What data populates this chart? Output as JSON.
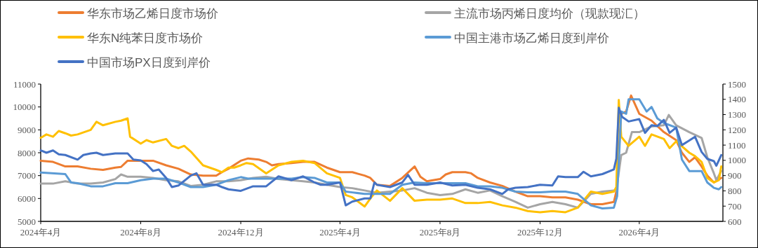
{
  "chart_data": {
    "type": "line",
    "legend": "top",
    "xlim": [
      "2024-04-01",
      "2026-07-12"
    ],
    "xticks": [
      {
        "value": "2024-04-01",
        "label": "2024年4月"
      },
      {
        "value": "2024-08-01",
        "label": "2024年8月"
      },
      {
        "value": "2024-12-01",
        "label": "2024年12月"
      },
      {
        "value": "2025-04-01",
        "label": "2025年4月"
      },
      {
        "value": "2025-08-01",
        "label": "2025年8月"
      },
      {
        "value": "2025-12-01",
        "label": "2025年12月"
      },
      {
        "value": "2026-04-01",
        "label": "2026年4月"
      }
    ],
    "ylim": [
      5000,
      11000
    ],
    "yticks": [
      5000,
      6000,
      7000,
      8000,
      9000,
      10000,
      11000
    ],
    "y2lim": [
      600,
      1500
    ],
    "y2ticks": [
      600,
      700,
      800,
      900,
      1000,
      1100,
      1200,
      1300,
      1400,
      1500
    ],
    "series": [
      {
        "name": "华东市场乙烯日度市场价",
        "color": "#ed7d31",
        "x": [
          "2024-04-01",
          "2024-04-16",
          "2024-05-01",
          "2024-05-16",
          "2024-06-01",
          "2024-06-16",
          "2024-07-01",
          "2024-07-08",
          "2024-07-16",
          "2024-08-01",
          "2024-08-16",
          "2024-09-01",
          "2024-09-16",
          "2024-10-01",
          "2024-10-16",
          "2024-11-01",
          "2024-11-08",
          "2024-11-16",
          "2024-12-01",
          "2024-12-10",
          "2024-12-23",
          "2025-01-01",
          "2025-01-08",
          "2025-01-16",
          "2025-02-01",
          "2025-02-15",
          "2025-03-01",
          "2025-03-16",
          "2025-04-01",
          "2025-04-16",
          "2025-05-01",
          "2025-05-08",
          "2025-05-16",
          "2025-06-01",
          "2025-06-16",
          "2025-07-01",
          "2025-07-08",
          "2025-07-16",
          "2025-08-01",
          "2025-08-08",
          "2025-08-16",
          "2025-09-01",
          "2025-09-08",
          "2025-09-16",
          "2025-10-01",
          "2025-10-16",
          "2025-11-01",
          "2025-11-16",
          "2025-12-01",
          "2025-12-16",
          "2026-01-01",
          "2026-01-16",
          "2026-02-01",
          "2026-02-15",
          "2026-03-01",
          "2026-03-04",
          "2026-03-10",
          "2026-03-16",
          "2026-03-22",
          "2026-04-01",
          "2026-04-16",
          "2026-05-01",
          "2026-05-16",
          "2026-05-23",
          "2026-06-01",
          "2026-06-08",
          "2026-06-16",
          "2026-06-23",
          "2026-07-01",
          "2026-07-10"
        ],
        "values": [
          7650,
          7600,
          7400,
          7400,
          7300,
          7250,
          7350,
          7380,
          7650,
          7650,
          7650,
          7450,
          7300,
          7050,
          7000,
          7000,
          7150,
          7300,
          7650,
          7750,
          7700,
          7600,
          7450,
          7500,
          7550,
          7600,
          7600,
          7350,
          7150,
          7150,
          7000,
          6900,
          6600,
          6550,
          6900,
          7400,
          6950,
          6750,
          6850,
          7050,
          7150,
          7150,
          7100,
          6900,
          6700,
          6550,
          6300,
          6100,
          6100,
          6050,
          6050,
          5950,
          5750,
          5750,
          5850,
          6300,
          9700,
          9800,
          10500,
          9700,
          9400,
          8900,
          8550,
          8000,
          7600,
          7800,
          7400,
          7000,
          6700,
          6900
        ]
      },
      {
        "name": "主流市场丙烯日度均价（现款现汇）",
        "color": "#a5a5a5",
        "x": [
          "2024-04-01",
          "2024-04-16",
          "2024-05-01",
          "2024-05-16",
          "2024-06-01",
          "2024-06-16",
          "2024-07-01",
          "2024-07-08",
          "2024-07-16",
          "2024-08-01",
          "2024-08-16",
          "2024-09-01",
          "2024-09-16",
          "2024-10-01",
          "2024-10-16",
          "2024-11-01",
          "2024-11-16",
          "2024-12-01",
          "2024-12-16",
          "2025-01-01",
          "2025-01-16",
          "2025-02-01",
          "2025-02-15",
          "2025-03-01",
          "2025-03-16",
          "2025-04-01",
          "2025-04-16",
          "2025-05-01",
          "2025-05-16",
          "2025-06-01",
          "2025-06-16",
          "2025-07-01",
          "2025-07-16",
          "2025-08-01",
          "2025-08-16",
          "2025-09-01",
          "2025-09-16",
          "2025-10-01",
          "2025-10-16",
          "2025-11-01",
          "2025-11-16",
          "2025-12-01",
          "2025-12-16",
          "2026-01-01",
          "2026-01-16",
          "2026-02-01",
          "2026-02-15",
          "2026-03-01",
          "2026-03-04",
          "2026-03-10",
          "2026-03-16",
          "2026-03-23",
          "2026-04-01",
          "2026-04-16",
          "2026-05-01",
          "2026-05-07",
          "2026-05-16",
          "2026-06-01",
          "2026-06-16",
          "2026-06-23",
          "2026-07-01",
          "2026-07-04",
          "2026-07-10"
        ],
        "values": [
          6650,
          6650,
          6750,
          6650,
          6650,
          6700,
          6850,
          7050,
          6950,
          6950,
          6900,
          6800,
          6750,
          6550,
          6600,
          6750,
          6750,
          6800,
          6900,
          6950,
          6850,
          6800,
          6750,
          6700,
          6600,
          6500,
          6450,
          6350,
          6250,
          6300,
          6350,
          6450,
          6250,
          6150,
          6200,
          6400,
          6250,
          6350,
          6100,
          5850,
          5600,
          5750,
          5850,
          5750,
          5600,
          6200,
          6300,
          6350,
          6350,
          7900,
          8000,
          8900,
          8900,
          9150,
          9200,
          9650,
          9200,
          8900,
          8650,
          7800,
          7100,
          6800,
          7200
        ]
      },
      {
        "name": "华东N纯苯日度市场价",
        "color": "#ffc000",
        "x": [
          "2024-04-01",
          "2024-04-08",
          "2024-04-16",
          "2024-04-23",
          "2024-05-01",
          "2024-05-08",
          "2024-05-16",
          "2024-06-01",
          "2024-06-08",
          "2024-06-16",
          "2024-07-01",
          "2024-07-08",
          "2024-07-16",
          "2024-07-19",
          "2024-08-01",
          "2024-08-08",
          "2024-08-16",
          "2024-09-01",
          "2024-09-08",
          "2024-09-16",
          "2024-09-23",
          "2024-10-01",
          "2024-10-16",
          "2024-11-01",
          "2024-11-08",
          "2024-11-16",
          "2024-11-23",
          "2024-12-01",
          "2024-12-08",
          "2024-12-16",
          "2025-01-01",
          "2025-01-16",
          "2025-02-01",
          "2025-02-15",
          "2025-03-01",
          "2025-03-16",
          "2025-04-01",
          "2025-04-08",
          "2025-04-16",
          "2025-05-01",
          "2025-05-08",
          "2025-05-16",
          "2025-06-01",
          "2025-06-16",
          "2025-07-01",
          "2025-07-16",
          "2025-08-01",
          "2025-08-16",
          "2025-09-01",
          "2025-09-16",
          "2025-10-01",
          "2025-10-16",
          "2025-11-01",
          "2025-11-16",
          "2025-12-01",
          "2025-12-16",
          "2026-01-01",
          "2026-01-16",
          "2026-02-01",
          "2026-02-15",
          "2026-03-01",
          "2026-03-04",
          "2026-03-07",
          "2026-03-10",
          "2026-03-19",
          "2026-04-01",
          "2026-04-08",
          "2026-04-16",
          "2026-05-01",
          "2026-05-08",
          "2026-05-16",
          "2026-06-01",
          "2026-06-08",
          "2026-06-16",
          "2026-06-23",
          "2026-07-01",
          "2026-07-07",
          "2026-07-10"
        ],
        "values": [
          8650,
          8800,
          8700,
          8950,
          8850,
          8750,
          8800,
          9000,
          9350,
          9200,
          9350,
          9400,
          9500,
          8700,
          8400,
          8550,
          8450,
          8600,
          8300,
          8200,
          8300,
          8050,
          7450,
          7250,
          7150,
          7350,
          7350,
          7450,
          7550,
          7500,
          7100,
          7450,
          7600,
          7650,
          7550,
          7100,
          6900,
          6150,
          6050,
          5650,
          6000,
          6350,
          5900,
          6450,
          5900,
          5950,
          5950,
          6000,
          5800,
          5800,
          5850,
          5700,
          5600,
          5450,
          5400,
          5450,
          5400,
          5600,
          6300,
          6200,
          6300,
          6500,
          10300,
          8700,
          8300,
          8700,
          8300,
          8800,
          8600,
          8200,
          8500,
          8000,
          7850,
          7600,
          6900,
          6700,
          6800,
          7400
        ]
      },
      {
        "name": "中国主港市场乙烯日度到岸价",
        "color": "#5b9bd5",
        "axis": "y2",
        "x": [
          "2024-04-01",
          "2024-05-01",
          "2024-05-08",
          "2024-05-16",
          "2024-06-01",
          "2024-06-16",
          "2024-07-01",
          "2024-07-16",
          "2024-08-01",
          "2024-08-16",
          "2024-09-01",
          "2024-09-16",
          "2024-10-01",
          "2024-10-16",
          "2024-11-01",
          "2024-11-16",
          "2024-12-01",
          "2024-12-10",
          "2025-01-01",
          "2025-01-16",
          "2025-02-01",
          "2025-02-15",
          "2025-03-01",
          "2025-03-16",
          "2025-04-01",
          "2025-04-08",
          "2025-04-16",
          "2025-05-01",
          "2025-05-16",
          "2025-06-01",
          "2025-06-16",
          "2025-07-01",
          "2025-07-16",
          "2025-08-01",
          "2025-08-16",
          "2025-09-01",
          "2025-09-16",
          "2025-10-01",
          "2025-10-16",
          "2025-11-01",
          "2025-11-16",
          "2025-12-01",
          "2025-12-16",
          "2026-01-01",
          "2026-01-16",
          "2026-02-01",
          "2026-02-15",
          "2026-03-01",
          "2026-03-05",
          "2026-03-10",
          "2026-03-16",
          "2026-03-19",
          "2026-04-01",
          "2026-04-10",
          "2026-04-16",
          "2026-04-23",
          "2026-05-01",
          "2026-05-16",
          "2026-05-23",
          "2026-06-01",
          "2026-06-16",
          "2026-06-23",
          "2026-07-01",
          "2026-07-07",
          "2026-07-10"
        ],
        "values": [
          920,
          910,
          855,
          850,
          830,
          830,
          850,
          850,
          870,
          880,
          880,
          855,
          825,
          825,
          840,
          870,
          890,
          880,
          880,
          880,
          880,
          890,
          885,
          855,
          855,
          795,
          790,
          780,
          780,
          780,
          840,
          855,
          850,
          850,
          850,
          850,
          830,
          830,
          820,
          795,
          790,
          790,
          795,
          795,
          780,
          705,
          685,
          690,
          765,
          1320,
          1305,
          1400,
          1400,
          1320,
          1350,
          1275,
          1245,
          1215,
          1005,
          930,
          930,
          855,
          820,
          810,
          825
        ]
      },
      {
        "name": "中国市场PX日度到岸价",
        "color": "#4472c4",
        "axis": "y2",
        "x": [
          "2024-04-01",
          "2024-04-08",
          "2024-04-16",
          "2024-04-23",
          "2024-05-01",
          "2024-05-16",
          "2024-05-23",
          "2024-06-01",
          "2024-06-08",
          "2024-06-16",
          "2024-07-01",
          "2024-07-16",
          "2024-07-23",
          "2024-08-01",
          "2024-08-08",
          "2024-08-16",
          "2024-08-23",
          "2024-09-01",
          "2024-09-08",
          "2024-09-16",
          "2024-10-01",
          "2024-10-08",
          "2024-10-16",
          "2024-11-01",
          "2024-11-08",
          "2024-11-16",
          "2024-12-01",
          "2024-12-16",
          "2025-01-01",
          "2025-01-16",
          "2025-02-01",
          "2025-02-15",
          "2025-03-01",
          "2025-03-08",
          "2025-03-16",
          "2025-04-01",
          "2025-04-08",
          "2025-04-16",
          "2025-05-01",
          "2025-05-08",
          "2025-05-13",
          "2025-05-16",
          "2025-06-01",
          "2025-06-16",
          "2025-06-23",
          "2025-07-01",
          "2025-07-16",
          "2025-08-01",
          "2025-08-16",
          "2025-09-01",
          "2025-09-16",
          "2025-10-01",
          "2025-10-16",
          "2025-10-23",
          "2025-11-01",
          "2025-11-16",
          "2025-12-01",
          "2025-12-16",
          "2025-12-23",
          "2026-01-01",
          "2026-01-16",
          "2026-01-23",
          "2026-02-01",
          "2026-02-15",
          "2026-03-01",
          "2026-03-04",
          "2026-03-07",
          "2026-03-11",
          "2026-03-19",
          "2026-04-01",
          "2026-04-08",
          "2026-04-16",
          "2026-04-23",
          "2026-05-01",
          "2026-05-08",
          "2026-05-16",
          "2026-05-23",
          "2026-06-01",
          "2026-06-08",
          "2026-06-16",
          "2026-06-23",
          "2026-07-01",
          "2026-07-04",
          "2026-07-10"
        ],
        "values": [
          1065,
          1050,
          1065,
          1040,
          1035,
          1005,
          1035,
          1045,
          1050,
          1035,
          1045,
          1045,
          1005,
          1000,
          975,
          930,
          940,
          885,
          825,
          835,
          900,
          915,
          840,
          840,
          825,
          810,
          800,
          830,
          830,
          895,
          870,
          895,
          855,
          840,
          840,
          855,
          705,
          730,
          750,
          750,
          855,
          840,
          825,
          855,
          905,
          840,
          840,
          855,
          835,
          840,
          820,
          810,
          780,
          810,
          820,
          825,
          840,
          835,
          895,
          890,
          890,
          925,
          895,
          910,
          940,
          1010,
          1345,
          1285,
          1255,
          1270,
          1180,
          1230,
          1225,
          1265,
          1180,
          1215,
          1100,
          1130,
          1155,
          1055,
          1010,
          995,
          965,
          1035
        ]
      }
    ]
  }
}
